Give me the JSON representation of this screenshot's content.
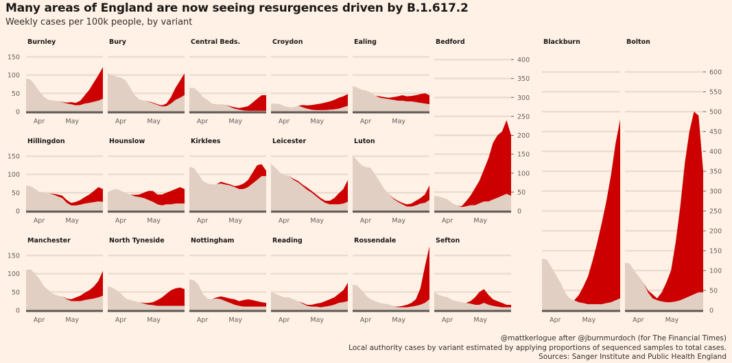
{
  "title": "Many areas of England are now seeing resurgences driven by B.1.617.2",
  "subtitle": "Weekly cases per 100k people, by variant",
  "footer": [
    "@mattkerlogue after @jburnmurdoch (for The Financial Times)",
    "Local authority cases by variant estimated by applying proportions of sequenced samples to total cases.",
    "Sources: Sanger Institute and Public Health England"
  ],
  "colors": {
    "background": "#fff1e5",
    "other_variants": "#e0cfc2",
    "b16172": "#cc0000",
    "axis": "#5d5754",
    "grid": "#ecdcd0"
  },
  "chart_data": {
    "type": "area",
    "stacked": true,
    "x_ticks": [
      "Apr",
      "May"
    ],
    "x_range": [
      "2021-03-14",
      "2021-06-03"
    ],
    "panels": [
      {
        "name": "Burnley",
        "ylim": [
          0,
          150
        ],
        "y_ticks": [
          0,
          50,
          100,
          150
        ],
        "total": [
          90,
          88,
          72,
          55,
          40,
          32,
          30,
          29,
          27,
          25,
          26,
          24,
          30,
          45,
          60,
          80,
          100,
          122
        ],
        "other": [
          90,
          88,
          72,
          55,
          40,
          32,
          30,
          29,
          26,
          22,
          20,
          17,
          18,
          22,
          24,
          27,
          30,
          35
        ]
      },
      {
        "name": "Bury",
        "ylim": [
          0,
          150
        ],
        "y_ticks": [
          0,
          50,
          100,
          150
        ],
        "total": [
          105,
          100,
          95,
          93,
          85,
          65,
          45,
          33,
          30,
          28,
          25,
          20,
          17,
          22,
          40,
          65,
          85,
          105
        ],
        "other": [
          105,
          100,
          95,
          93,
          85,
          65,
          45,
          33,
          30,
          27,
          23,
          18,
          14,
          15,
          22,
          32,
          38,
          45
        ]
      },
      {
        "name": "Central Beds.",
        "ylim": [
          0,
          150
        ],
        "y_ticks": [
          0,
          50,
          100,
          150
        ],
        "total": [
          65,
          65,
          55,
          40,
          32,
          22,
          20,
          20,
          19,
          15,
          12,
          10,
          12,
          15,
          25,
          35,
          45,
          45
        ],
        "other": [
          65,
          65,
          55,
          40,
          32,
          22,
          20,
          20,
          19,
          13,
          8,
          5,
          3,
          2,
          2,
          2,
          2,
          2
        ]
      },
      {
        "name": "Croydon",
        "ylim": [
          0,
          150
        ],
        "y_ticks": [
          0,
          50,
          100,
          150
        ],
        "total": [
          22,
          22,
          20,
          15,
          12,
          12,
          16,
          18,
          17,
          18,
          20,
          22,
          25,
          28,
          32,
          38,
          42,
          48
        ],
        "other": [
          22,
          22,
          20,
          15,
          12,
          12,
          16,
          12,
          8,
          5,
          4,
          4,
          4,
          5,
          6,
          8,
          12,
          16
        ]
      },
      {
        "name": "Ealing",
        "ylim": [
          0,
          150
        ],
        "y_ticks": [
          0,
          50,
          100,
          150
        ],
        "total": [
          70,
          66,
          60,
          58,
          52,
          44,
          42,
          40,
          38,
          40,
          42,
          45,
          42,
          43,
          45,
          48,
          50,
          45
        ],
        "other": [
          70,
          66,
          60,
          58,
          52,
          44,
          38,
          36,
          34,
          32,
          30,
          30,
          28,
          28,
          26,
          24,
          22,
          20
        ]
      },
      {
        "name": "Hillingdon",
        "ylim": [
          0,
          150
        ],
        "y_ticks": [
          0,
          50,
          100,
          150
        ],
        "total": [
          70,
          68,
          60,
          52,
          50,
          48,
          47,
          45,
          42,
          30,
          22,
          25,
          30,
          38,
          45,
          55,
          65,
          60
        ],
        "other": [
          70,
          68,
          60,
          52,
          50,
          48,
          45,
          40,
          35,
          22,
          15,
          15,
          17,
          20,
          22,
          24,
          26,
          25
        ]
      },
      {
        "name": "Hounslow",
        "ylim": [
          0,
          150
        ],
        "y_ticks": [
          0,
          50,
          100,
          150
        ],
        "total": [
          50,
          58,
          60,
          55,
          48,
          45,
          44,
          45,
          50,
          55,
          55,
          45,
          45,
          50,
          55,
          60,
          65,
          60
        ],
        "other": [
          50,
          58,
          60,
          55,
          48,
          45,
          40,
          38,
          35,
          30,
          25,
          18,
          15,
          18,
          18,
          20,
          20,
          20
        ]
      },
      {
        "name": "Kirklees",
        "ylim": [
          0,
          150
        ],
        "y_ticks": [
          0,
          50,
          100,
          150
        ],
        "total": [
          120,
          118,
          100,
          82,
          75,
          73,
          73,
          80,
          76,
          73,
          68,
          70,
          75,
          85,
          105,
          125,
          128,
          110
        ],
        "other": [
          120,
          118,
          100,
          82,
          75,
          73,
          73,
          75,
          72,
          70,
          65,
          60,
          60,
          65,
          75,
          85,
          95,
          95
        ]
      },
      {
        "name": "Leicester",
        "ylim": [
          0,
          150
        ],
        "y_ticks": [
          0,
          50,
          100,
          150
        ],
        "total": [
          130,
          118,
          105,
          98,
          96,
          88,
          82,
          72,
          64,
          55,
          45,
          35,
          28,
          28,
          35,
          48,
          60,
          85
        ],
        "other": [
          130,
          118,
          105,
          98,
          96,
          85,
          78,
          68,
          58,
          50,
          40,
          30,
          22,
          18,
          18,
          18,
          20,
          25
        ]
      },
      {
        "name": "Luton",
        "ylim": [
          0,
          150
        ],
        "y_ticks": [
          0,
          50,
          100,
          150
        ],
        "total": [
          152,
          138,
          125,
          120,
          118,
          100,
          80,
          60,
          47,
          35,
          28,
          22,
          18,
          20,
          28,
          35,
          45,
          70
        ],
        "other": [
          152,
          138,
          125,
          120,
          118,
          100,
          80,
          60,
          47,
          33,
          25,
          18,
          12,
          12,
          15,
          20,
          22,
          30
        ]
      },
      {
        "name": "Manchester",
        "ylim": [
          0,
          150
        ],
        "y_ticks": [
          0,
          50,
          100,
          150
        ],
        "total": [
          110,
          112,
          100,
          85,
          65,
          55,
          45,
          40,
          38,
          32,
          30,
          35,
          40,
          48,
          55,
          65,
          80,
          108
        ],
        "other": [
          110,
          112,
          100,
          85,
          65,
          55,
          45,
          40,
          38,
          30,
          25,
          25,
          25,
          28,
          30,
          32,
          35,
          40
        ]
      },
      {
        "name": "North Tyneside",
        "ylim": [
          0,
          150
        ],
        "y_ticks": [
          0,
          50,
          100,
          150
        ],
        "total": [
          65,
          62,
          55,
          45,
          32,
          28,
          25,
          22,
          20,
          20,
          22,
          28,
          35,
          45,
          55,
          60,
          62,
          58
        ],
        "other": [
          65,
          62,
          55,
          45,
          32,
          28,
          25,
          22,
          18,
          15,
          14,
          12,
          12,
          12,
          12,
          12,
          12,
          12
        ]
      },
      {
        "name": "Nottingham",
        "ylim": [
          0,
          150
        ],
        "y_ticks": [
          0,
          50,
          100,
          150
        ],
        "total": [
          85,
          82,
          70,
          45,
          32,
          30,
          35,
          38,
          35,
          32,
          30,
          25,
          28,
          30,
          28,
          25,
          22,
          20
        ],
        "other": [
          85,
          82,
          70,
          45,
          32,
          30,
          32,
          30,
          25,
          20,
          15,
          12,
          10,
          10,
          10,
          10,
          10,
          10
        ]
      },
      {
        "name": "Reading",
        "ylim": [
          0,
          150
        ],
        "y_ticks": [
          0,
          50,
          100,
          150
        ],
        "total": [
          50,
          45,
          40,
          35,
          35,
          30,
          25,
          20,
          15,
          15,
          18,
          20,
          25,
          30,
          35,
          45,
          55,
          75
        ],
        "other": [
          50,
          45,
          40,
          35,
          35,
          30,
          25,
          18,
          12,
          10,
          10,
          8,
          10,
          12,
          15,
          20,
          22,
          25
        ]
      },
      {
        "name": "Rossendale",
        "ylim": [
          0,
          150
        ],
        "y_ticks": [
          0,
          50,
          100,
          150
        ],
        "total": [
          70,
          68,
          55,
          40,
          30,
          25,
          20,
          18,
          16,
          12,
          10,
          12,
          15,
          20,
          30,
          60,
          120,
          175
        ],
        "other": [
          70,
          68,
          55,
          40,
          30,
          25,
          20,
          18,
          16,
          12,
          8,
          8,
          8,
          10,
          12,
          15,
          20,
          30
        ]
      },
      {
        "name": "Sefton",
        "ylim": [
          0,
          150
        ],
        "y_ticks": [
          0,
          50,
          100,
          150
        ],
        "total": [
          50,
          42,
          38,
          35,
          28,
          25,
          22,
          20,
          25,
          35,
          50,
          58,
          42,
          30,
          25,
          20,
          15,
          15
        ],
        "other": [
          50,
          42,
          38,
          35,
          28,
          25,
          22,
          20,
          18,
          15,
          15,
          20,
          15,
          12,
          10,
          8,
          8,
          8
        ]
      },
      {
        "name": "Bedford",
        "ylim": [
          0,
          400
        ],
        "y_ticks": [
          0,
          50,
          100,
          150,
          200,
          250,
          300,
          350,
          400
        ],
        "total": [
          40,
          38,
          35,
          30,
          20,
          15,
          12,
          25,
          40,
          60,
          80,
          110,
          140,
          180,
          200,
          210,
          240,
          200
        ],
        "other": [
          40,
          38,
          35,
          30,
          20,
          15,
          10,
          12,
          15,
          15,
          20,
          25,
          25,
          30,
          35,
          40,
          45,
          40
        ]
      },
      {
        "name": "Blackburn",
        "ylim": [
          0,
          600
        ],
        "y_ticks": [
          0,
          50,
          100,
          150,
          200,
          250,
          300,
          350,
          400,
          450,
          500,
          550,
          600
        ],
        "total": [
          130,
          128,
          110,
          90,
          70,
          45,
          30,
          25,
          38,
          60,
          85,
          125,
          170,
          220,
          275,
          340,
          420,
          480
        ],
        "other": [
          130,
          128,
          110,
          90,
          70,
          45,
          30,
          25,
          20,
          18,
          15,
          15,
          15,
          15,
          18,
          20,
          25,
          30
        ]
      },
      {
        "name": "Bolton",
        "ylim": [
          0,
          600
        ],
        "y_ticks": [
          0,
          50,
          100,
          150,
          200,
          250,
          300,
          350,
          400,
          450,
          500,
          550,
          600
        ],
        "total": [
          120,
          118,
          100,
          85,
          70,
          50,
          40,
          30,
          45,
          70,
          100,
          170,
          260,
          370,
          450,
          500,
          490,
          350
        ],
        "other": [
          120,
          118,
          100,
          85,
          70,
          45,
          30,
          25,
          22,
          20,
          20,
          22,
          25,
          30,
          35,
          40,
          45,
          45
        ]
      }
    ]
  }
}
